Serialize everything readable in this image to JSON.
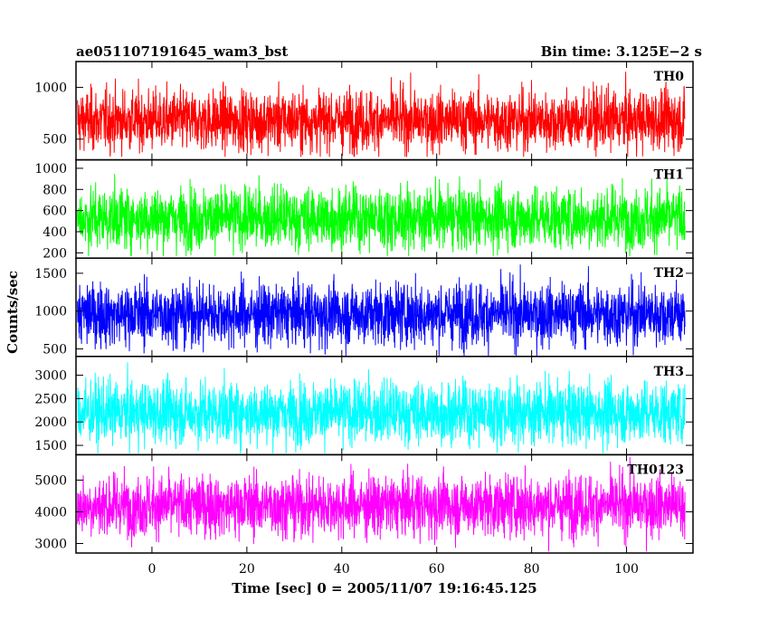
{
  "header": {
    "title": "ae051107191645_wam3_bst",
    "bin_time": "Bin time: 3.125E−2 s"
  },
  "chart_data": {
    "type": "line",
    "title": "ae051107191645_wam3_bst",
    "xlabel": "Time [sec] 0 = 2005/11/07 19:16:45.125",
    "ylabel": "Counts/sec",
    "xlim": [
      -16,
      114
    ],
    "x_ticks": [
      0,
      20,
      40,
      60,
      80,
      100
    ],
    "x_tick_labels": [
      "0",
      "20",
      "40",
      "60",
      "80",
      "100"
    ],
    "x_data_range": [
      -15.7,
      112.3
    ],
    "bin_time_sec": 0.03125,
    "grid": false,
    "panels": [
      {
        "label": "TH0",
        "color": "#ff0000",
        "ylim": [
          300,
          1250
        ],
        "y_ticks": [
          500,
          1000
        ],
        "y_tick_labels": [
          "500",
          "1000"
        ],
        "series_mean": 680,
        "series_range": [
          330,
          1240
        ]
      },
      {
        "label": "TH1",
        "color": "#00ff00",
        "ylim": [
          150,
          1080
        ],
        "y_ticks": [
          200,
          400,
          600,
          800,
          1000
        ],
        "y_tick_labels": [
          "200",
          "400",
          "600",
          "800",
          "1000"
        ],
        "series_mean": 530,
        "series_range": [
          170,
          1080
        ]
      },
      {
        "label": "TH2",
        "color": "#0000ff",
        "ylim": [
          400,
          1700
        ],
        "y_ticks": [
          500,
          1000,
          1500
        ],
        "y_tick_labels": [
          "500",
          "1000",
          "1500"
        ],
        "series_mean": 960,
        "series_range": [
          410,
          1700
        ]
      },
      {
        "label": "TH3",
        "color": "#00ffff",
        "ylim": [
          1300,
          3400
        ],
        "y_ticks": [
          1500,
          2000,
          2500,
          3000
        ],
        "y_tick_labels": [
          "1500",
          "2000",
          "2500",
          "3000"
        ],
        "series_mean": 2200,
        "series_range": [
          1330,
          3400
        ]
      },
      {
        "label": "TH0123",
        "color": "#ff00ff",
        "ylim": [
          2700,
          5800
        ],
        "y_ticks": [
          3000,
          4000,
          5000
        ],
        "y_tick_labels": [
          "3000",
          "4000",
          "5000"
        ],
        "series_mean": 4200,
        "series_range": [
          2750,
          5750
        ]
      }
    ]
  }
}
